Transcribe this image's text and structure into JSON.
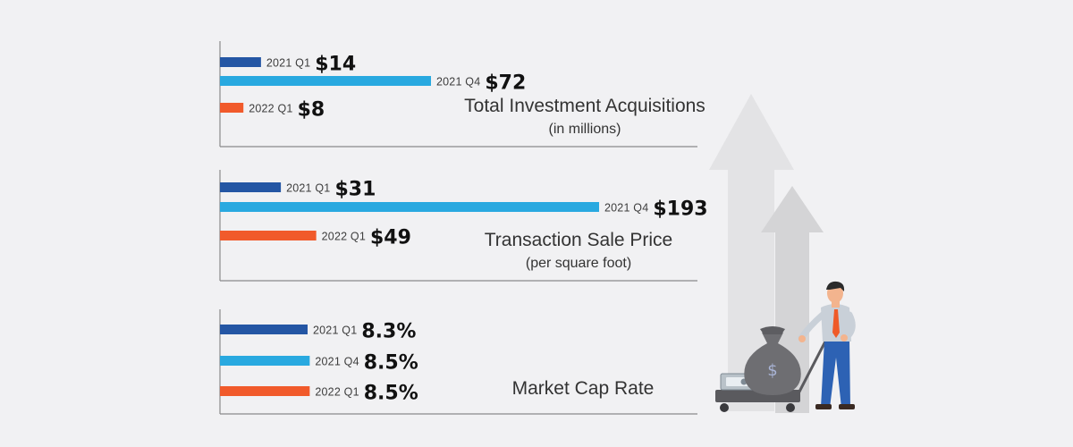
{
  "colors": {
    "2021 Q1": "#2456a4",
    "2021 Q4": "#29a9e0",
    "2022 Q1": "#f15a2b",
    "axis": "#8a8a8a",
    "arrow_back": "#e3e3e5",
    "arrow_front": "#d4d4d6"
  },
  "chart_data": [
    {
      "type": "bar",
      "orientation": "horizontal",
      "title": "Total Investment Acquisitions",
      "subtitle": "(in millions)",
      "categories": [
        "2021 Q1",
        "2021 Q4",
        "2022 Q1"
      ],
      "values": [
        14,
        72,
        8
      ],
      "value_labels": [
        "$14",
        "$72",
        "$8"
      ]
    },
    {
      "type": "bar",
      "orientation": "horizontal",
      "title": "Transaction Sale Price",
      "subtitle": "(per square foot)",
      "categories": [
        "2021 Q1",
        "2021 Q4",
        "2022 Q1"
      ],
      "values": [
        31,
        193,
        49
      ],
      "value_labels": [
        "$31",
        "$193",
        "$49"
      ]
    },
    {
      "type": "bar",
      "orientation": "horizontal",
      "title": "Market Cap Rate",
      "subtitle": "",
      "categories": [
        "2021 Q1",
        "2021 Q4",
        "2022 Q1"
      ],
      "values": [
        8.3,
        8.5,
        8.5
      ],
      "value_labels": [
        "8.3%",
        "8.5%",
        "8.5%"
      ]
    }
  ],
  "illustration": {
    "icons": [
      "up-arrow-icon",
      "money-bag-icon",
      "cash-stack-icon",
      "cart-icon",
      "businessman-icon"
    ],
    "bag_symbol": "$"
  }
}
